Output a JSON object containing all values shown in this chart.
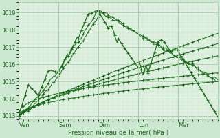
{
  "title": "",
  "xlabel": "Pression niveau de la mer( hPa )",
  "background_color": "#cde8d0",
  "plot_bg_color": "#dff0e0",
  "grid_color_major": "#aacfaa",
  "grid_color_minor": "#c8e4c8",
  "line_color": "#1a6b1a",
  "ylim": [
    1012.8,
    1019.6
  ],
  "yticks": [
    1013,
    1014,
    1015,
    1016,
    1017,
    1018,
    1019
  ],
  "day_labels": [
    "Ven",
    "Sam",
    "Dim",
    "Lun",
    "Mar"
  ],
  "day_positions": [
    0.5,
    48.5,
    96.5,
    144.5,
    192.5
  ],
  "vline_positions": [
    0,
    48,
    96,
    144,
    192,
    240
  ],
  "total_hours": 240,
  "n_points": 241,
  "figsize": [
    3.2,
    2.0
  ],
  "dpi": 100
}
